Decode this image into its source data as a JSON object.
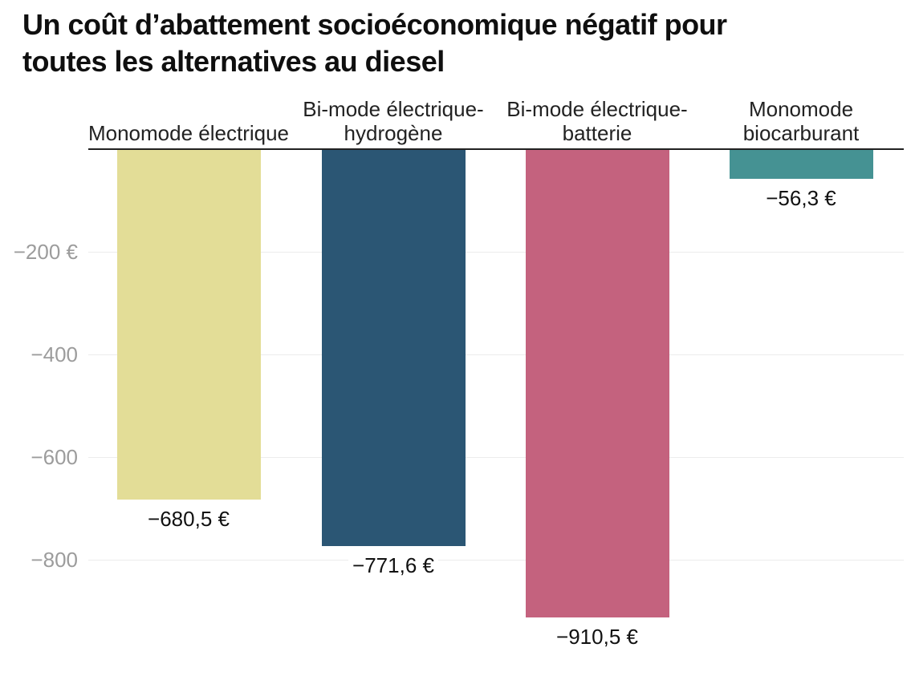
{
  "title_lines": [
    "Un coût d’abattement socioéconomique négatif pour",
    "toutes les alternatives au diesel"
  ],
  "chart_data": {
    "type": "bar",
    "title": "Un coût d’abattement socioéconomique négatif pour toutes les alternatives au diesel",
    "unit": "€",
    "categories": [
      "Monomode électrique",
      "Bi-mode électrique-hydrogène",
      "Bi-mode électrique-batterie",
      "Monomode biocarburant"
    ],
    "category_label_lines": [
      [
        "Monomode électrique"
      ],
      [
        "Bi-mode électrique-",
        "hydrogène"
      ],
      [
        "Bi-mode électrique-",
        "batterie"
      ],
      [
        "Monomode",
        "biocarburant"
      ]
    ],
    "values": [
      -680.5,
      -771.6,
      -910.5,
      -56.3
    ],
    "value_labels": [
      "−680,5 €",
      "−771,6 €",
      "−910,5 €",
      "−56,3 €"
    ],
    "bar_colors": [
      "#e3dd97",
      "#2b5674",
      "#c4627e",
      "#459293"
    ],
    "y_ticks": [
      {
        "value": -200,
        "label": "−200 €"
      },
      {
        "value": -400,
        "label": "−400"
      },
      {
        "value": -600,
        "label": "−600"
      },
      {
        "value": -800,
        "label": "−800"
      }
    ],
    "ylim": [
      -960,
      0
    ],
    "baseline": 0,
    "grid": true,
    "legend_position": "none",
    "axis_color": "#222222",
    "grid_color": "#ececec",
    "tick_color": "#9c9c9c"
  }
}
